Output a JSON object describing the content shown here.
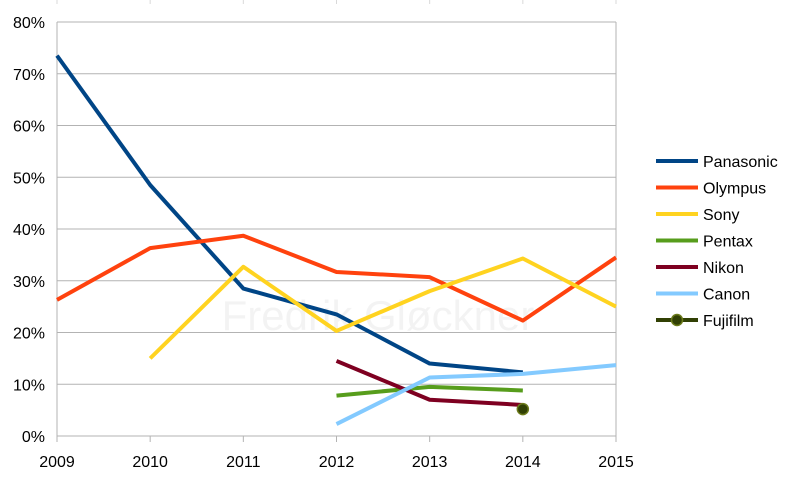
{
  "watermark": "Fredrik Gløckner",
  "chart_data": {
    "type": "line",
    "x": [
      2009,
      2010,
      2011,
      2012,
      2013,
      2014,
      2015
    ],
    "xlim": [
      2009,
      2015
    ],
    "ylim": [
      0,
      80
    ],
    "y_ticks": [
      0,
      10,
      20,
      30,
      40,
      50,
      60,
      70,
      80
    ],
    "y_tick_labels": [
      "0%",
      "10%",
      "20%",
      "30%",
      "40%",
      "50%",
      "60%",
      "70%",
      "80%"
    ],
    "grid": "horizontal",
    "legend_position": "right",
    "series": [
      {
        "name": "Panasonic",
        "color": "#004586",
        "values": [
          73.5,
          48.5,
          28.5,
          23.5,
          14,
          12.3,
          null
        ]
      },
      {
        "name": "Olympus",
        "color": "#ff420e",
        "values": [
          26.3,
          36.3,
          38.7,
          31.7,
          30.7,
          22.3,
          34.5
        ]
      },
      {
        "name": "Sony",
        "color": "#ffd320",
        "values": [
          null,
          15,
          32.7,
          20.3,
          28,
          34.3,
          25
        ]
      },
      {
        "name": "Pentax",
        "color": "#579d1c",
        "values": [
          null,
          null,
          null,
          7.8,
          9.5,
          8.8,
          null
        ]
      },
      {
        "name": "Nikon",
        "color": "#7e0021",
        "values": [
          null,
          null,
          null,
          14.5,
          7,
          6,
          null
        ]
      },
      {
        "name": "Canon",
        "color": "#83caff",
        "values": [
          null,
          null,
          null,
          2.3,
          11.3,
          12,
          13.7
        ]
      },
      {
        "name": "Fujifilm",
        "color": "#314004",
        "marker": "circle",
        "values": [
          null,
          null,
          null,
          null,
          null,
          5.2,
          null
        ]
      }
    ]
  }
}
